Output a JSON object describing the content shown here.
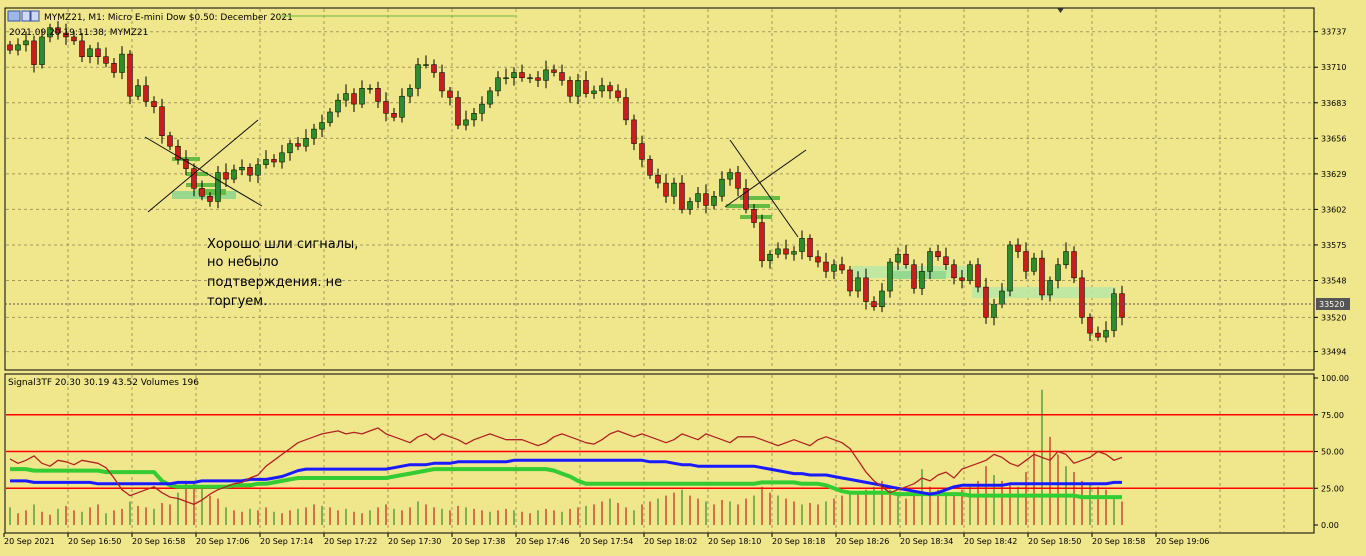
{
  "window": {
    "title": "MYMZ21, M1:  Micro E-mini Dow $0.50: December 2021",
    "datetime_label": "2021.09.20 19:11:38; MYMZ21",
    "icon": "chart-window-icon"
  },
  "colors": {
    "background": "#f0e68c",
    "bull": "#2e8b2e",
    "bear": "#c81e1e",
    "green_line": "#33cc33",
    "blue_line": "#1a1aff",
    "brown_line": "#b22222",
    "level_line": "#ff0000",
    "grid": "#a09a62"
  },
  "price_axis": {
    "labels": [
      "33737",
      "33710",
      "33683",
      "33656",
      "33629",
      "33602",
      "33575",
      "33548",
      "33520",
      "33494"
    ],
    "current_price": "33520",
    "range": [
      33480,
      33755
    ]
  },
  "annotation": {
    "text_lines": [
      "Хорошо шли сигналы,",
      "но небыло",
      "подтверждения.  не",
      "торгуем."
    ]
  },
  "indicator": {
    "header": "Signal3TF 20.30 30.19 43.52 Volumes 196",
    "axis_labels": [
      "100.00",
      "75.00",
      "50.00",
      "25.00",
      "0.00"
    ],
    "levels": [
      75,
      50,
      25
    ],
    "range": [
      0,
      100
    ]
  },
  "time_axis": {
    "labels": [
      "20 Sep 2021",
      "20 Sep 16:50",
      "20 Sep 16:58",
      "20 Sep 17:06",
      "20 Sep 17:14",
      "20 Sep 17:22",
      "20 Sep 17:30",
      "20 Sep 17:38",
      "20 Sep 17:46",
      "20 Sep 17:54",
      "20 Sep 18:02",
      "20 Sep 18:10",
      "20 Sep 18:18",
      "20 Sep 18:26",
      "20 Sep 18:34",
      "20 Sep 18:42",
      "20 Sep 18:50",
      "20 Sep 18:58",
      "20 Sep 19:06"
    ]
  },
  "chart_data": {
    "type": "candlestick",
    "title": "MYMZ21, M1:  Micro E-mini Dow $0.50: December 2021",
    "ylim": [
      33480,
      33755
    ],
    "close": [
      33723,
      33727,
      33730,
      33712,
      33733,
      33740,
      33736,
      33733,
      33730,
      33718,
      33724,
      33718,
      33713,
      33706,
      33720,
      33688,
      33696,
      33684,
      33680,
      33658,
      33650,
      33640,
      33633,
      33618,
      33612,
      33608,
      33630,
      33625,
      33632,
      33634,
      33628,
      33636,
      33640,
      33638,
      33645,
      33652,
      33650,
      33656,
      33663,
      33668,
      33676,
      33685,
      33690,
      33682,
      33694,
      33694,
      33684,
      33675,
      33672,
      33688,
      33694,
      33712,
      33712,
      33706,
      33692,
      33687,
      33666,
      33670,
      33675,
      33682,
      33692,
      33702,
      33702,
      33706,
      33702,
      33702,
      33700,
      33708,
      33706,
      33700,
      33688,
      33700,
      33690,
      33692,
      33696,
      33692,
      33687,
      33670,
      33652,
      33640,
      33628,
      33622,
      33612,
      33622,
      33602,
      33608,
      33614,
      33605,
      33612,
      33625,
      33630,
      33618,
      33602,
      33592,
      33563,
      33568,
      33572,
      33568,
      33570,
      33580,
      33566,
      33562,
      33555,
      33560,
      33556,
      33540,
      33550,
      33532,
      33528,
      33540,
      33562,
      33568,
      33560,
      33542,
      33555,
      33570,
      33566,
      33560,
      33550,
      33548,
      33560,
      33543,
      33520,
      33530,
      33540,
      33575,
      33570,
      33555,
      33565,
      33537,
      33548,
      33560,
      33570,
      33550,
      33520,
      33508,
      33505,
      33510,
      33538,
      33520
    ],
    "volume_relative": [
      12,
      8,
      10,
      14,
      9,
      7,
      11,
      13,
      10,
      9,
      12,
      14,
      8,
      10,
      11,
      16,
      13,
      12,
      11,
      15,
      14,
      22,
      30,
      28,
      26,
      20,
      18,
      12,
      10,
      9,
      11,
      10,
      12,
      9,
      8,
      10,
      11,
      12,
      14,
      13,
      12,
      10,
      11,
      9,
      8,
      10,
      12,
      14,
      11,
      10,
      12,
      16,
      14,
      12,
      11,
      10,
      13,
      12,
      11,
      10,
      9,
      10,
      11,
      10,
      9,
      8,
      10,
      11,
      10,
      9,
      11,
      12,
      13,
      14,
      16,
      18,
      15,
      12,
      10,
      14,
      16,
      18,
      20,
      22,
      24,
      20,
      18,
      16,
      14,
      17,
      16,
      14,
      18,
      20,
      26,
      22,
      20,
      18,
      16,
      14,
      15,
      14,
      16,
      18,
      20,
      22,
      21,
      24,
      26,
      30,
      24,
      20,
      18,
      22,
      38,
      26,
      24,
      22,
      20,
      24,
      26,
      30,
      40,
      34,
      30,
      28,
      26,
      36,
      50,
      92,
      60,
      48,
      40,
      36,
      30,
      28,
      26,
      24,
      20,
      16
    ],
    "signal_brown": [
      45,
      42,
      44,
      47,
      42,
      40,
      44,
      43,
      41,
      44,
      43,
      42,
      39,
      32,
      24,
      20,
      22,
      24,
      26,
      22,
      19,
      18,
      16,
      14,
      17,
      21,
      24,
      26,
      28,
      29,
      32,
      34,
      40,
      44,
      48,
      52,
      56,
      58,
      60,
      62,
      63,
      64,
      62,
      63,
      62,
      64,
      66,
      62,
      60,
      58,
      56,
      60,
      62,
      58,
      62,
      60,
      58,
      55,
      58,
      60,
      62,
      60,
      58,
      58,
      58,
      56,
      54,
      56,
      60,
      62,
      60,
      58,
      56,
      55,
      58,
      62,
      64,
      62,
      60,
      62,
      60,
      58,
      56,
      58,
      62,
      60,
      58,
      62,
      60,
      58,
      56,
      60,
      60,
      60,
      58,
      56,
      54,
      56,
      58,
      56,
      54,
      58,
      60,
      58,
      56,
      52,
      44,
      36,
      30,
      26,
      22,
      24,
      26,
      28,
      32,
      30,
      34,
      36,
      32,
      38,
      40,
      42,
      44,
      48,
      46,
      42,
      40,
      44,
      48,
      46,
      44,
      50,
      48,
      42,
      44,
      46,
      50,
      48,
      44,
      46
    ],
    "signal_blue": [
      30,
      30,
      30,
      29,
      29,
      29,
      29,
      29,
      29,
      29,
      29,
      28,
      28,
      28,
      28,
      28,
      28,
      28,
      28,
      28,
      28,
      29,
      29,
      29,
      30,
      30,
      30,
      30,
      30,
      30,
      31,
      31,
      31,
      32,
      33,
      35,
      37,
      38,
      38,
      38,
      38,
      38,
      38,
      38,
      38,
      38,
      38,
      38,
      39,
      40,
      41,
      41,
      41,
      42,
      42,
      42,
      43,
      43,
      43,
      43,
      43,
      43,
      43,
      44,
      44,
      44,
      44,
      44,
      44,
      44,
      44,
      44,
      44,
      44,
      44,
      44,
      44,
      44,
      44,
      44,
      43,
      43,
      43,
      42,
      41,
      41,
      40,
      40,
      40,
      40,
      40,
      40,
      40,
      40,
      39,
      38,
      37,
      36,
      35,
      35,
      34,
      34,
      34,
      33,
      32,
      31,
      30,
      29,
      28,
      27,
      26,
      25,
      24,
      23,
      22,
      21,
      22,
      24,
      26,
      27,
      27,
      27,
      27,
      27,
      27,
      28,
      28,
      28,
      28,
      28,
      28,
      28,
      28,
      28,
      28,
      28,
      28,
      28,
      29,
      29
    ],
    "signal_green": [
      38,
      38,
      38,
      37,
      37,
      37,
      37,
      37,
      37,
      37,
      37,
      37,
      36,
      36,
      36,
      36,
      36,
      36,
      36,
      30,
      27,
      26,
      26,
      26,
      26,
      26,
      26,
      26,
      27,
      27,
      27,
      28,
      28,
      29,
      30,
      31,
      32,
      32,
      32,
      32,
      32,
      32,
      32,
      32,
      32,
      32,
      32,
      32,
      33,
      34,
      35,
      36,
      37,
      38,
      38,
      38,
      38,
      38,
      38,
      38,
      38,
      38,
      38,
      38,
      38,
      38,
      38,
      38,
      37,
      35,
      33,
      30,
      28,
      28,
      28,
      28,
      28,
      28,
      28,
      28,
      28,
      28,
      28,
      28,
      28,
      28,
      28,
      28,
      28,
      28,
      28,
      28,
      28,
      28,
      29,
      29,
      29,
      29,
      29,
      28,
      28,
      28,
      27,
      25,
      23,
      22,
      22,
      22,
      22,
      22,
      22,
      21,
      21,
      21,
      21,
      21,
      21,
      21,
      21,
      21,
      20,
      20,
      20,
      20,
      20,
      20,
      20,
      20,
      20,
      20,
      20,
      20,
      20,
      20,
      19,
      19,
      19,
      19,
      19,
      19
    ]
  }
}
